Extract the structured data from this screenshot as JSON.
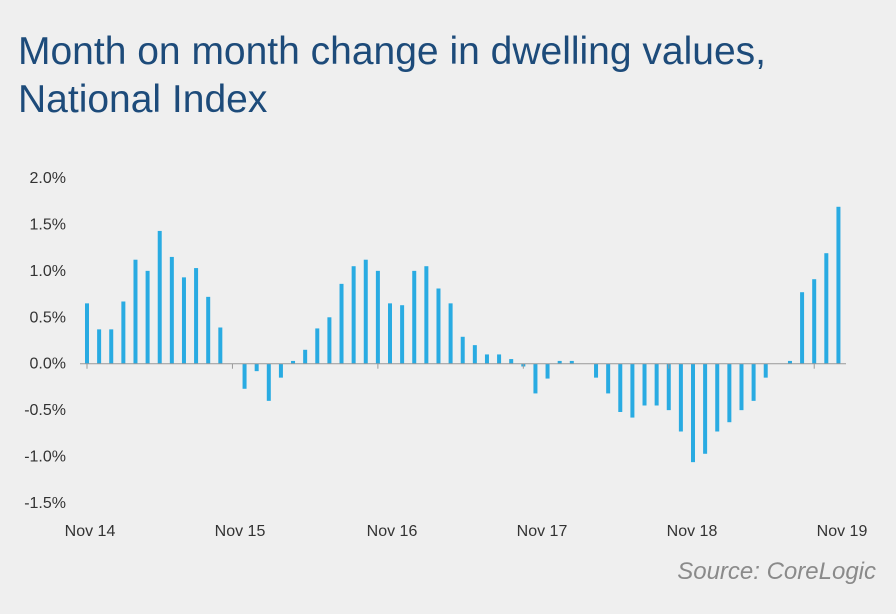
{
  "title_lines": [
    "Month on month change in dwelling values,",
    "National Index"
  ],
  "source": "Source: CoreLogic",
  "colors": {
    "bar": "#29abe2",
    "axis": "#999999",
    "title": "#1d4b7a",
    "background": "#efefef"
  },
  "chart_data": {
    "type": "bar",
    "title": "Month on month change in dwelling values, National Index",
    "ylim": [
      -1.5,
      2.0
    ],
    "y_ticks": [
      "2.0%",
      "1.5%",
      "1.0%",
      "0.5%",
      "0.0%",
      "-0.5%",
      "-1.0%",
      "-1.5%"
    ],
    "x_tick_labels": [
      "Nov 14",
      "Nov 15",
      "Nov 16",
      "Nov 17",
      "Nov 18",
      "Nov 19"
    ],
    "grid": false,
    "legend": "none",
    "series": [
      {
        "values": [
          0.65,
          0.37,
          0.37,
          0.67,
          1.12,
          1.0,
          1.43,
          1.15,
          0.93,
          1.03,
          0.72,
          0.39,
          0.0,
          -0.27,
          -0.08,
          -0.4,
          -0.15,
          0.03,
          0.15,
          0.38,
          0.5,
          0.86,
          1.05,
          1.12,
          1.0,
          0.65,
          0.63,
          1.0,
          1.05,
          0.81,
          0.65,
          0.29,
          0.2,
          0.1,
          0.1,
          0.05,
          -0.03,
          -0.32,
          -0.16,
          0.03,
          0.03,
          0.0,
          -0.15,
          -0.32,
          -0.52,
          -0.58,
          -0.45,
          -0.45,
          -0.5,
          -0.73,
          -1.06,
          -0.97,
          -0.73,
          -0.63,
          -0.5,
          -0.4,
          -0.15,
          0.0,
          0.03,
          0.77,
          0.91,
          1.19,
          1.69
        ]
      }
    ]
  }
}
